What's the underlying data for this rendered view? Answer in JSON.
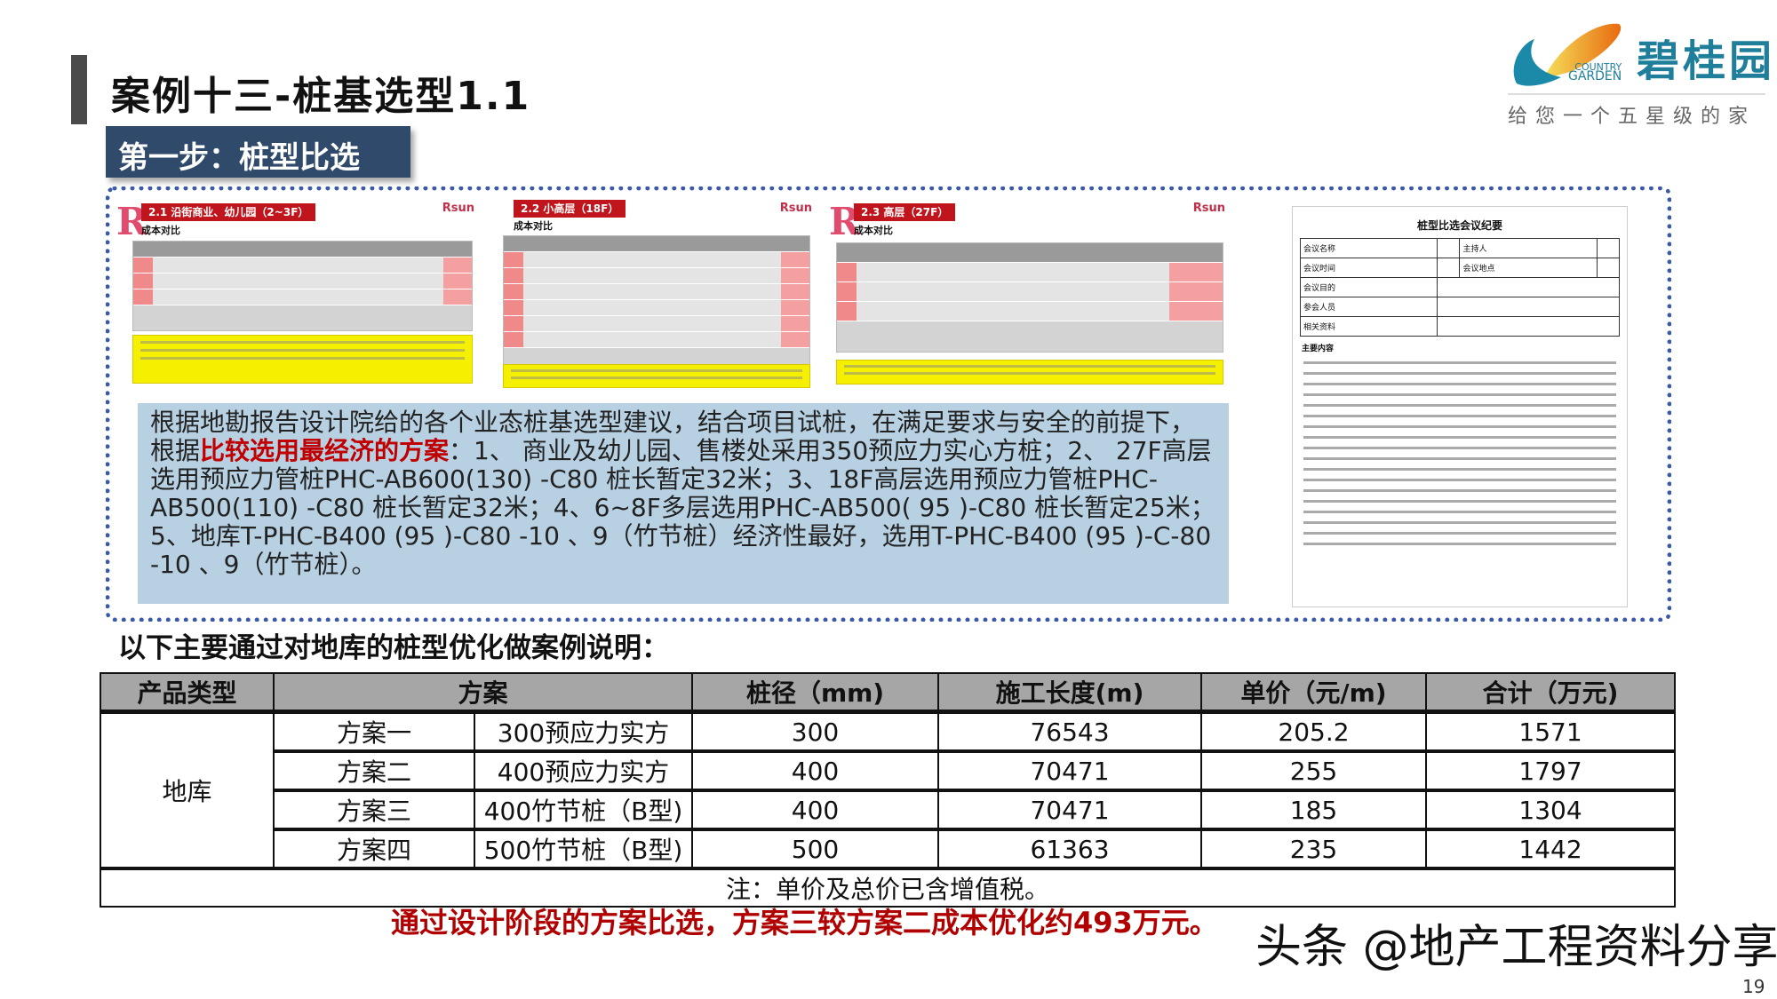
{
  "header": {
    "title": "案例十三-桩基选型1.1",
    "step_label": "第一步：桩型比选"
  },
  "logo": {
    "brand_cn": "碧桂园",
    "brand_en_1": "COUNTRY",
    "brand_en_2": "GARDEN",
    "slogan": "给您一个五星级的家"
  },
  "thumbnails": [
    {
      "heading": "2.1 沿街商业、幼儿园（2~3F）",
      "subheading": "成本对比",
      "brand": "Rsun"
    },
    {
      "heading": "2.2 小高层（18F）",
      "subheading": "成本对比",
      "brand": "Rsun"
    },
    {
      "heading": "2.3 高层（27F）",
      "subheading": "成本对比",
      "brand": "Rsun"
    }
  ],
  "meeting_doc": {
    "title": "桩型比选会议纪要",
    "fields": [
      "会议名称",
      "主持人",
      "会议时间",
      "会议地点",
      "会议目的",
      "参会人员",
      "相关资料"
    ],
    "main_content_label": "主要内容"
  },
  "summary": {
    "prefix": "根据地勘报告设计院给的各个业态桩基选型建议，结合项目试桩，在满足要求与安全的前提下，根据",
    "highlight": "比较选用最经济的方案",
    "suffix": "：1、 商业及幼儿园、售楼处采用350预应力实心方桩；2、 27F高层选用预应力管桩PHC-AB600(130) -C80 桩长暂定32米；3、18F高层选用预应力管桩PHC-AB500(110) -C80 桩长暂定32米；4、6~8F多层选用PHC-AB500( 95 )-C80 桩长暂定25米；5、地库T-PHC-B400 (95 )-C80 -10 、9（竹节桩）经济性最好，选用T-PHC-B400 (95 )-C-80 -10 、9（竹节桩）。"
  },
  "section_title": "以下主要通过对地库的桩型优化做案例说明：",
  "table": {
    "headers": [
      "产品类型",
      "方案",
      "桩径（mm)",
      "施工长度(m)",
      "单价（元/m)",
      "合计（万元)"
    ],
    "product_type": "地库",
    "rows": [
      {
        "plan": "方案一",
        "pile": "300预应力实方",
        "diameter": "300",
        "length": "76543",
        "unit_price": "205.2",
        "total": "1571"
      },
      {
        "plan": "方案二",
        "pile": "400预应力实方",
        "diameter": "400",
        "length": "70471",
        "unit_price": "255",
        "total": "1797"
      },
      {
        "plan": "方案三",
        "pile": "400竹节桩（B型)",
        "diameter": "400",
        "length": "70471",
        "unit_price": "185",
        "total": "1304"
      },
      {
        "plan": "方案四",
        "pile": "500竹节桩（B型)",
        "diameter": "500",
        "length": "61363",
        "unit_price": "235",
        "total": "1442"
      }
    ],
    "note": "注：单价及总价已含增值税。"
  },
  "conclusion": "通过设计阶段的方案比选，方案三较方案二成本优化约493万元。",
  "watermark": "头条 @地产工程资料分享",
  "page_number": "19",
  "colors": {
    "step_bg": "#2f4a6a",
    "frame": "#3a5aa8",
    "textbox_bg": "#b7d0e2",
    "highlight": "#c00000",
    "table_header": "#a6a6a6",
    "brand": "#1f7f9a"
  }
}
